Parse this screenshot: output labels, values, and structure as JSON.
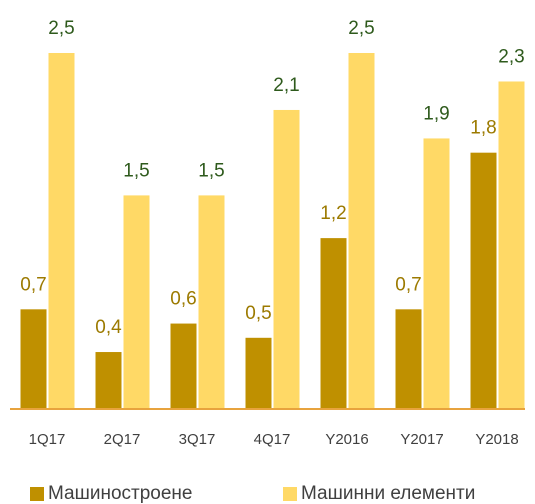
{
  "chart_data": {
    "type": "bar",
    "categories": [
      "1Q17",
      "2Q17",
      "3Q17",
      "4Q17",
      "Y2016",
      "Y2017",
      "Y2018"
    ],
    "series": [
      {
        "name": "Машиностроене",
        "color": "#bf9000",
        "label_color": "#9c7a00",
        "values": [
          0.7,
          0.4,
          0.6,
          0.5,
          1.2,
          0.7,
          1.8
        ],
        "value_labels": [
          "0,7",
          "0,4",
          "0,6",
          "0,5",
          "1,2",
          "0,7",
          "1,8"
        ]
      },
      {
        "name": "Машинни елементи",
        "color": "#ffd966",
        "label_color": "#2e5a1c",
        "values": [
          2.5,
          1.5,
          1.5,
          2.1,
          2.5,
          1.9,
          2.3
        ],
        "value_labels": [
          "2,5",
          "1,5",
          "1,5",
          "2,1",
          "2,5",
          "1,9",
          "2,3"
        ]
      }
    ],
    "legend": "bottom"
  }
}
